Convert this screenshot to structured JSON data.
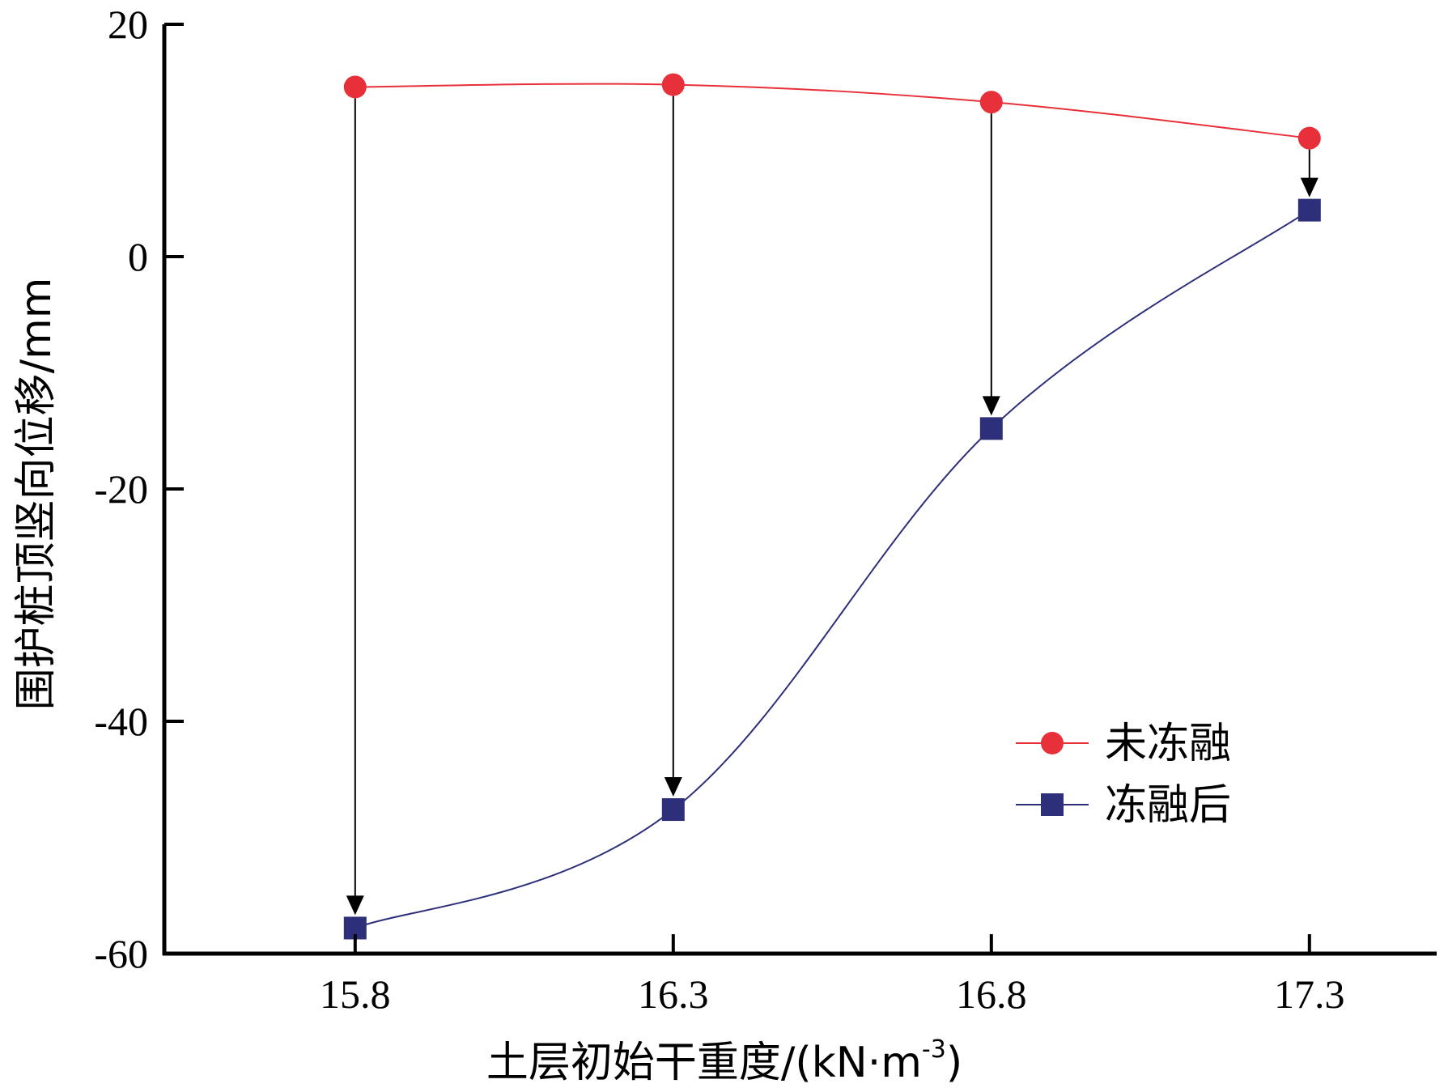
{
  "chart_data": {
    "type": "line",
    "x": [
      15.8,
      16.3,
      16.8,
      17.3
    ],
    "xlabel_main": "土层初始干重度/(kN·m",
    "xlabel_sup": "-3",
    "xlabel_close": ")",
    "ylabel": "围护桩顶竖向位移/mm",
    "xticks": [
      "15.8",
      "16.3",
      "16.8",
      "17.3"
    ],
    "yticks": [
      "20",
      "0",
      "-20",
      "-40",
      "-60"
    ],
    "ytick_values": [
      20,
      0,
      -20,
      -40,
      -60
    ],
    "xlim": [
      15.5,
      17.5
    ],
    "ylim": [
      -60,
      20
    ],
    "grid": false,
    "legend_position": "bottom-right",
    "series": [
      {
        "name": "未冻融",
        "values": [
          14.6,
          14.8,
          13.3,
          10.2
        ],
        "color": "#e8303a",
        "marker": "circle"
      },
      {
        "name": "冻融后",
        "values": [
          -57.8,
          -47.6,
          -14.8,
          4.0
        ],
        "color": "#2e2f7a",
        "marker": "square"
      }
    ],
    "annotations": "arrows from each 未冻融 point down to the corresponding 冻融后 point"
  }
}
